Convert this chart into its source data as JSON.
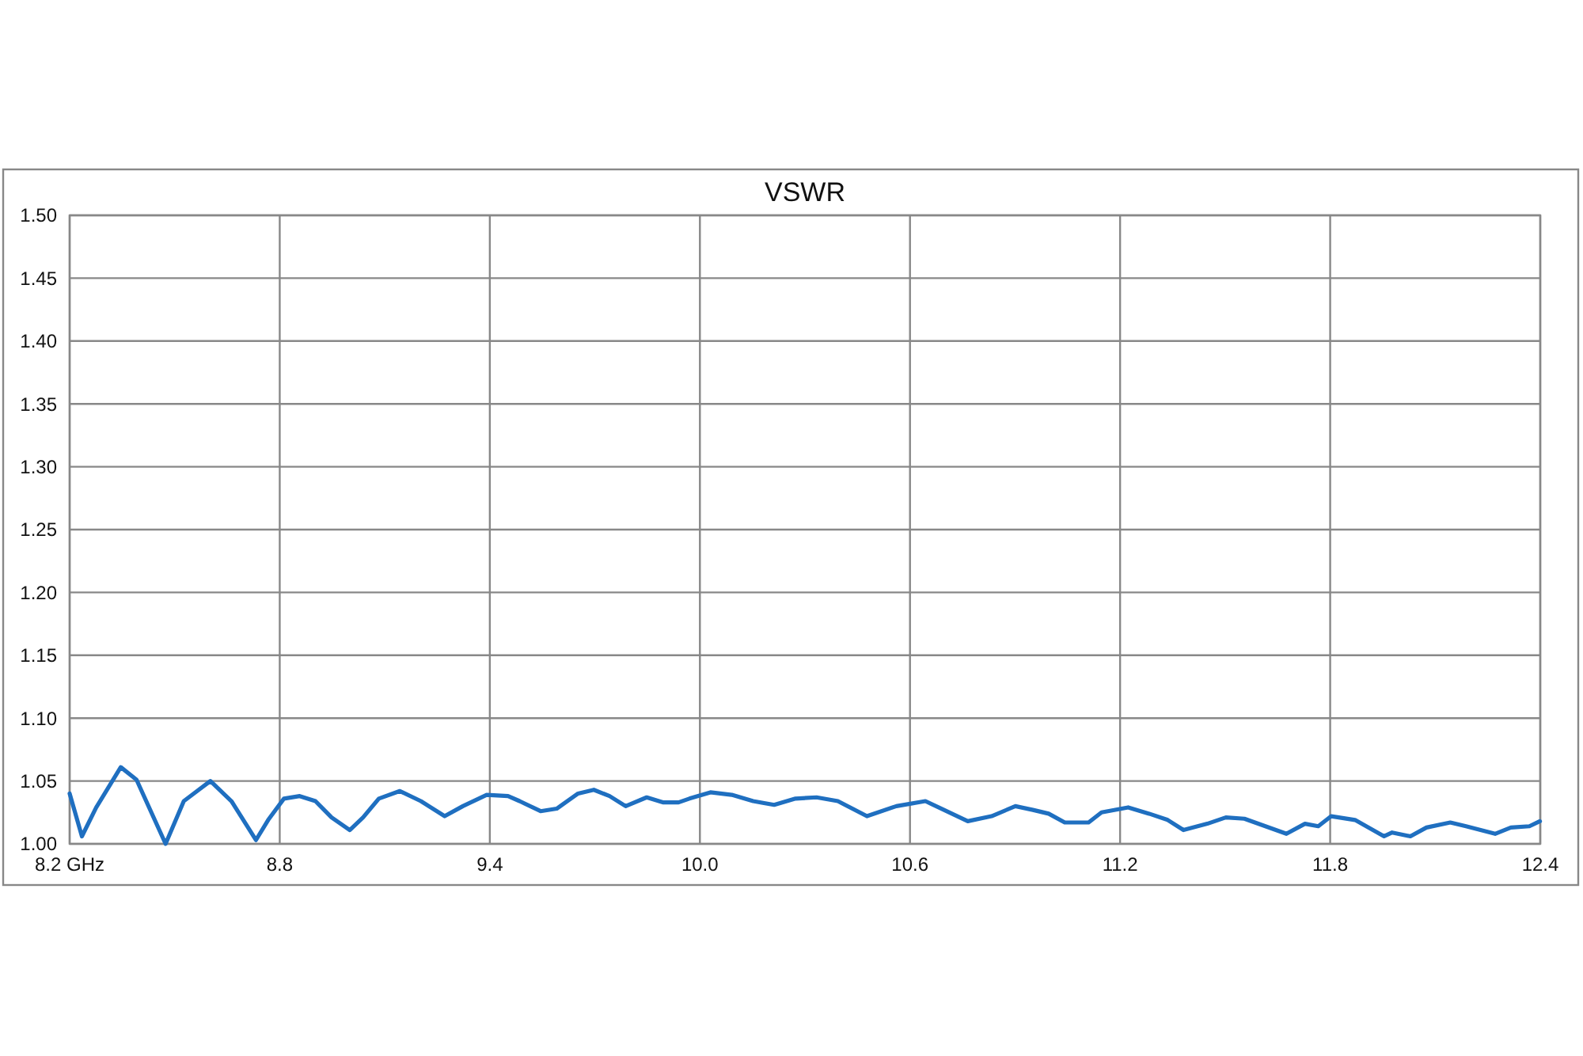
{
  "chart_data": {
    "type": "line",
    "title": "VSWR",
    "xlim": [
      8.2,
      12.4
    ],
    "ylim": [
      1.0,
      1.5
    ],
    "xticks": [
      {
        "value": 8.2,
        "label": "8.2 GHz"
      },
      8.8,
      9.4,
      {
        "value": 10.0,
        "label": "10.0"
      },
      10.6,
      11.2,
      11.8,
      12.4
    ],
    "yticks": [
      {
        "value": 1.0,
        "label": "1.00"
      },
      1.05,
      {
        "value": 1.1,
        "label": "1.10"
      },
      1.15,
      {
        "value": 1.2,
        "label": "1.20"
      },
      1.25,
      {
        "value": 1.3,
        "label": "1.30"
      },
      1.35,
      {
        "value": 1.4,
        "label": "1.40"
      },
      1.45,
      {
        "value": 1.5,
        "label": "1.50"
      }
    ],
    "grid": true,
    "marker": "none",
    "line_style": "solid",
    "series": [
      {
        "color": "#1f6fc0",
        "x": [
          8.2,
          8.235,
          8.276,
          8.346,
          8.391,
          8.474,
          8.526,
          8.602,
          8.662,
          8.732,
          8.767,
          8.812,
          8.857,
          8.902,
          8.948,
          9.0,
          9.038,
          9.083,
          9.143,
          9.203,
          9.271,
          9.323,
          9.391,
          9.452,
          9.485,
          9.545,
          9.591,
          9.652,
          9.697,
          9.742,
          9.788,
          9.848,
          9.894,
          9.939,
          9.97,
          10.03,
          10.091,
          10.152,
          10.212,
          10.273,
          10.333,
          10.394,
          10.477,
          10.561,
          10.644,
          10.697,
          10.765,
          10.833,
          10.901,
          10.951,
          10.996,
          11.042,
          11.11,
          11.147,
          11.223,
          11.283,
          11.336,
          11.381,
          11.449,
          11.502,
          11.555,
          11.615,
          11.675,
          11.728,
          11.766,
          11.803,
          11.871,
          11.954,
          11.977,
          12.029,
          12.075,
          12.143,
          12.188,
          12.271,
          12.316,
          12.369,
          12.399
        ],
        "values": [
          1.04,
          1.006,
          1.029,
          1.061,
          1.051,
          1.0,
          1.034,
          1.05,
          1.034,
          1.003,
          1.019,
          1.036,
          1.038,
          1.034,
          1.021,
          1.011,
          1.021,
          1.036,
          1.042,
          1.034,
          1.022,
          1.03,
          1.039,
          1.038,
          1.034,
          1.026,
          1.028,
          1.04,
          1.043,
          1.038,
          1.03,
          1.037,
          1.033,
          1.033,
          1.036,
          1.041,
          1.039,
          1.034,
          1.031,
          1.036,
          1.037,
          1.034,
          1.022,
          1.03,
          1.034,
          1.027,
          1.018,
          1.022,
          1.03,
          1.027,
          1.024,
          1.017,
          1.017,
          1.025,
          1.029,
          1.024,
          1.019,
          1.011,
          1.016,
          1.021,
          1.02,
          1.014,
          1.008,
          1.016,
          1.014,
          1.022,
          1.019,
          1.006,
          1.009,
          1.006,
          1.013,
          1.017,
          1.014,
          1.008,
          1.013,
          1.014,
          1.018
        ]
      }
    ]
  }
}
